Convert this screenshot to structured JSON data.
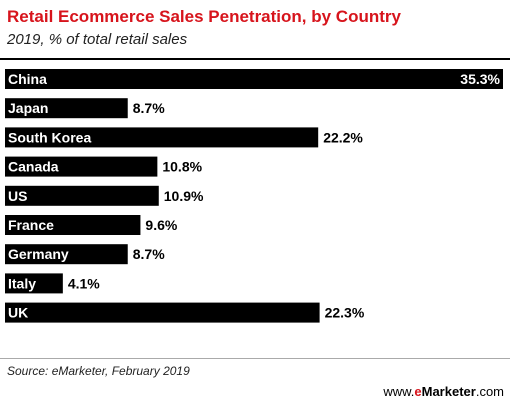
{
  "header": {
    "title": "Retail Ecommerce Sales Penetration, by Country",
    "subtitle": "2019, % of total retail sales"
  },
  "footer": {
    "source": "Source: eMarketer, February 2019",
    "brand_prefix": "www.",
    "brand_accent": "e",
    "brand_name": "Marketer",
    "brand_suffix": ".com"
  },
  "colors": {
    "bar": "#000000",
    "bar_label": "#ffffff",
    "value_label": "#000000",
    "accent": "#d7141c"
  },
  "chart_data": {
    "type": "bar",
    "orientation": "horizontal",
    "title": "Retail Ecommerce Sales Penetration, by Country",
    "subtitle": "2019, % of total retail sales",
    "categories": [
      "China",
      "Japan",
      "South Korea",
      "Canada",
      "US",
      "France",
      "Germany",
      "Italy",
      "UK"
    ],
    "values": [
      35.3,
      8.7,
      22.2,
      10.8,
      10.9,
      9.6,
      8.7,
      4.1,
      22.3
    ],
    "value_labels": [
      "35.3%",
      "8.7%",
      "22.2%",
      "10.8%",
      "10.9%",
      "9.6%",
      "8.7%",
      "4.1%",
      "22.3%"
    ],
    "xlim": [
      0,
      35.3
    ],
    "grid": false,
    "legend": "none"
  }
}
